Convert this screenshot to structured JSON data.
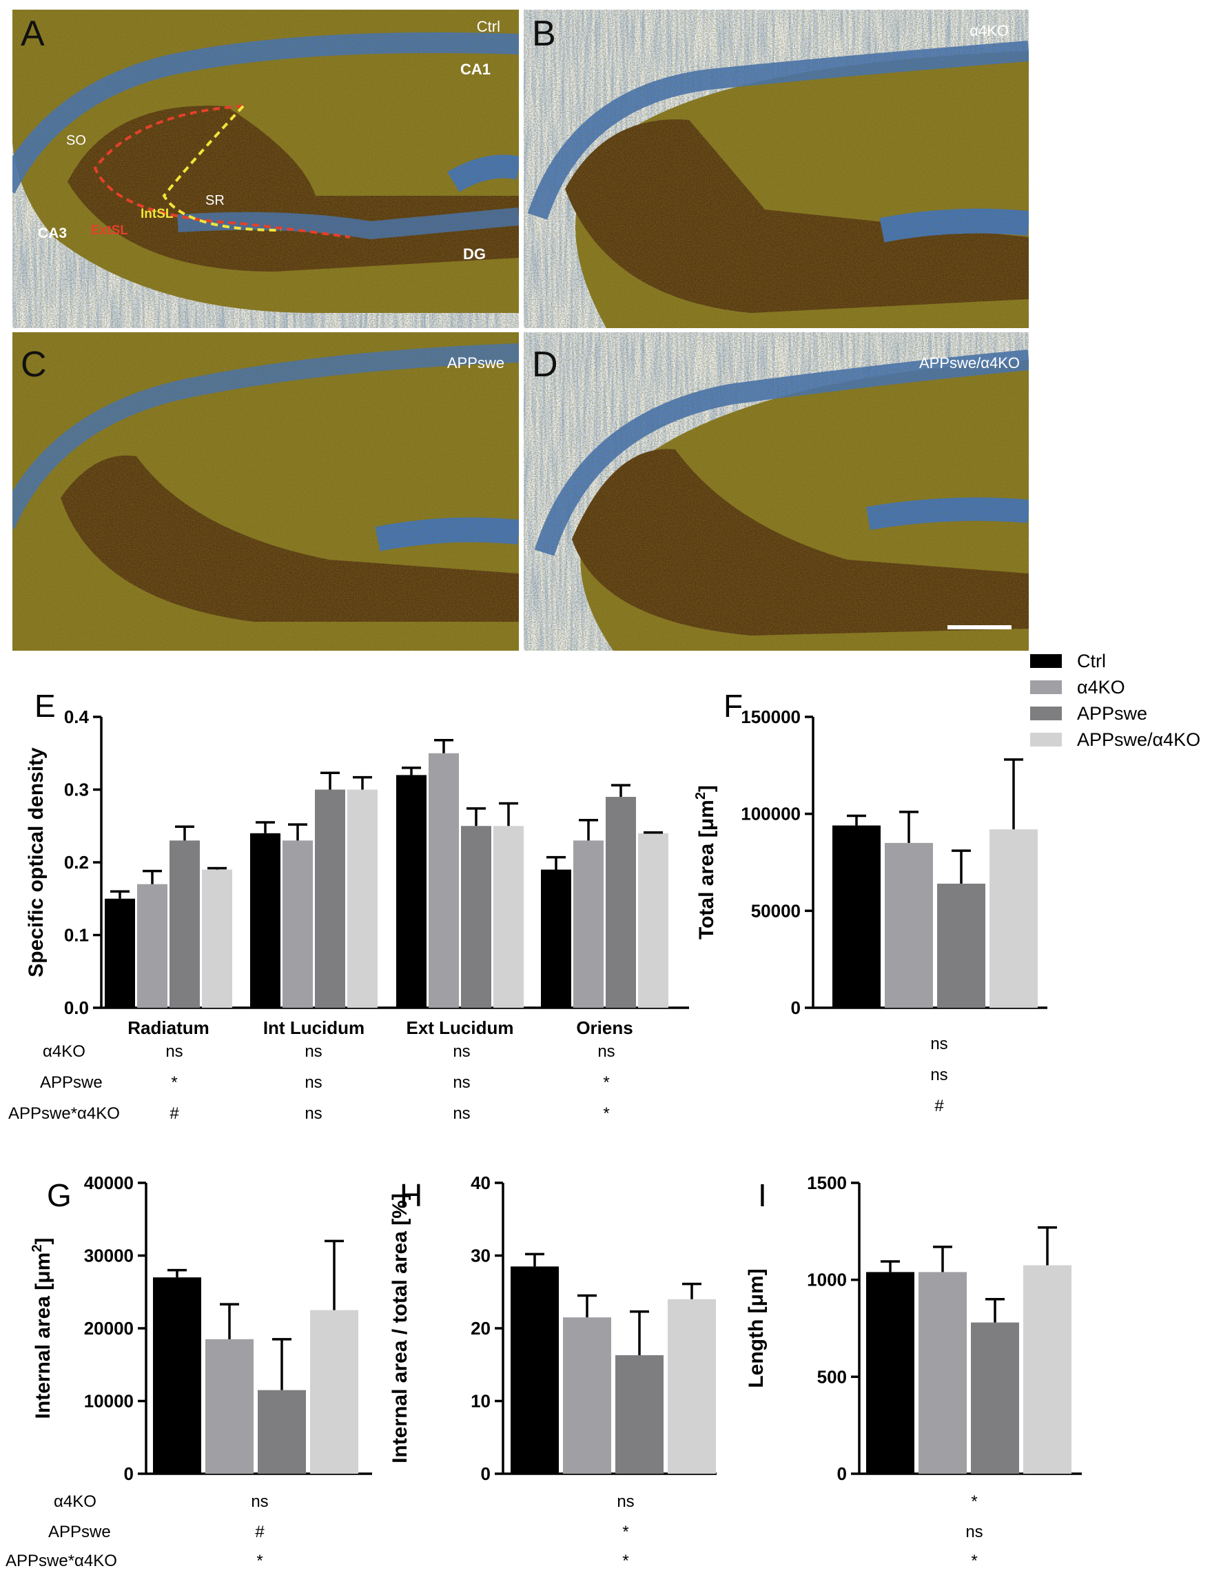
{
  "panels": {
    "A": {
      "letter": "A",
      "label": "Ctrl",
      "regions": [
        "CA1",
        "SO",
        "SR",
        "CA3",
        "DG"
      ],
      "boundary_labels": [
        "IntSL",
        "ExtSL"
      ]
    },
    "B": {
      "letter": "B",
      "label": "α4KO"
    },
    "C": {
      "letter": "C",
      "label": "APPswe"
    },
    "D": {
      "letter": "D",
      "label": "APPswe/α4KO"
    }
  },
  "legend": [
    "Ctrl",
    "α4KO",
    "APPswe",
    "APPswe/α4KO"
  ],
  "colors": {
    "Ctrl": "#000000",
    "α4KO": "#a0a0a4",
    "APPswe": "#7e7e80",
    "APPswe/α4KO": "#d2d2d2"
  },
  "stats_rows": [
    "α4KO",
    "APPswe",
    "APPswe*α4KO"
  ],
  "chart_data": [
    {
      "panel": "E",
      "type": "bar",
      "ylabel": "Specific optical density",
      "ylim": [
        0,
        0.4
      ],
      "yticks": [
        "0.0",
        "0.1",
        "0.2",
        "0.3",
        "0.4"
      ],
      "categories": [
        "Radiatum",
        "Int Lucidum",
        "Ext Lucidum",
        "Oriens"
      ],
      "series": [
        {
          "name": "Ctrl",
          "values": [
            0.15,
            0.24,
            0.32,
            0.19
          ],
          "errors": [
            0.01,
            0.015,
            0.01,
            0.017
          ]
        },
        {
          "name": "α4KO",
          "values": [
            0.17,
            0.23,
            0.35,
            0.23
          ],
          "errors": [
            0.018,
            0.022,
            0.018,
            0.028
          ]
        },
        {
          "name": "APPswe",
          "values": [
            0.23,
            0.3,
            0.25,
            0.29
          ],
          "errors": [
            0.019,
            0.023,
            0.024,
            0.016
          ]
        },
        {
          "name": "APPswe/α4KO",
          "values": [
            0.19,
            0.3,
            0.25,
            0.24
          ],
          "errors": [
            0.002,
            0.017,
            0.031,
            0.001
          ]
        }
      ],
      "stats": [
        [
          "ns",
          "ns",
          "ns",
          "ns"
        ],
        [
          "*",
          "ns",
          "ns",
          "*"
        ],
        [
          "#",
          "ns",
          "ns",
          "*"
        ]
      ]
    },
    {
      "panel": "F",
      "type": "bar",
      "ylabel": "Total area [μm2]",
      "ylim": [
        0,
        150000
      ],
      "yticks": [
        "0",
        "50000",
        "100000",
        "150000"
      ],
      "series": [
        {
          "name": "Ctrl",
          "values": [
            94000
          ],
          "errors": [
            5000
          ]
        },
        {
          "name": "α4KO",
          "values": [
            85000
          ],
          "errors": [
            16000
          ]
        },
        {
          "name": "APPswe",
          "values": [
            64000
          ],
          "errors": [
            17000
          ]
        },
        {
          "name": "APPswe/α4KO",
          "values": [
            92000
          ],
          "errors": [
            36000
          ]
        }
      ],
      "stats": [
        "ns",
        "ns",
        "#"
      ]
    },
    {
      "panel": "G",
      "type": "bar",
      "ylabel": "Internal area [μm2]",
      "ylim": [
        0,
        40000
      ],
      "yticks": [
        "0",
        "10000",
        "20000",
        "30000",
        "40000"
      ],
      "series": [
        {
          "name": "Ctrl",
          "values": [
            27000
          ],
          "errors": [
            1000
          ]
        },
        {
          "name": "α4KO",
          "values": [
            18500
          ],
          "errors": [
            4800
          ]
        },
        {
          "name": "APPswe",
          "values": [
            11500
          ],
          "errors": [
            7000
          ]
        },
        {
          "name": "APPswe/α4KO",
          "values": [
            22500
          ],
          "errors": [
            9500
          ]
        }
      ],
      "stats": [
        "ns",
        "#",
        "*"
      ]
    },
    {
      "panel": "H",
      "type": "bar",
      "ylabel": "Internal area / total area [%]",
      "ylim": [
        0,
        40
      ],
      "yticks": [
        "0",
        "10",
        "20",
        "30",
        "40"
      ],
      "series": [
        {
          "name": "Ctrl",
          "values": [
            28.5
          ],
          "errors": [
            1.7
          ]
        },
        {
          "name": "α4KO",
          "values": [
            21.5
          ],
          "errors": [
            3.0
          ]
        },
        {
          "name": "APPswe",
          "values": [
            16.3
          ],
          "errors": [
            6.0
          ]
        },
        {
          "name": "APPswe/α4KO",
          "values": [
            24.0
          ],
          "errors": [
            2.1
          ]
        }
      ],
      "stats": [
        "ns",
        "*",
        "*"
      ]
    },
    {
      "panel": "I",
      "type": "bar",
      "ylabel": "Length [μm]",
      "ylim": [
        0,
        1500
      ],
      "yticks": [
        "0",
        "500",
        "1000",
        "1500"
      ],
      "series": [
        {
          "name": "Ctrl",
          "values": [
            1040
          ],
          "errors": [
            55
          ]
        },
        {
          "name": "α4KO",
          "values": [
            1040
          ],
          "errors": [
            130
          ]
        },
        {
          "name": "APPswe",
          "values": [
            780
          ],
          "errors": [
            120
          ]
        },
        {
          "name": "APPswe/α4KO",
          "values": [
            1075
          ],
          "errors": [
            195
          ]
        }
      ],
      "stats": [
        "*",
        "ns",
        "*"
      ]
    }
  ]
}
